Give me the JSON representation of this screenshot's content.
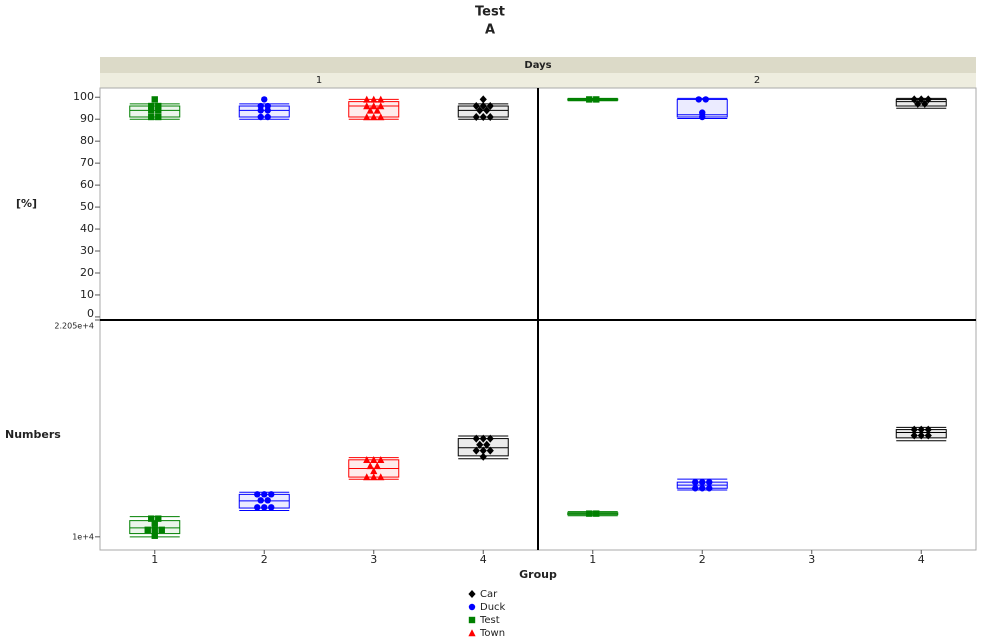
{
  "chart_data": {
    "type": "box",
    "title": "Test",
    "subtitle": "A",
    "facet_label": "Days",
    "facets": [
      "1",
      "2"
    ],
    "x_label": "Group",
    "categories": [
      "1",
      "2",
      "3",
      "4"
    ],
    "series": [
      {
        "name": "Test",
        "color": "#008000",
        "marker": "square"
      },
      {
        "name": "Duck",
        "color": "#0000ff",
        "marker": "circle"
      },
      {
        "name": "Town",
        "color": "#ff0000",
        "marker": "triangle"
      },
      {
        "name": "Car",
        "color": "#000000",
        "marker": "diamond"
      }
    ],
    "rows": [
      {
        "y_label": "[%]",
        "ylim": [
          -1.4,
          104.2
        ],
        "yticks": [
          0,
          10,
          20,
          30,
          40,
          50,
          60,
          70,
          80,
          90,
          100
        ],
        "facets": [
          [
            {
              "points": [
                99,
                96,
                96,
                94,
                94,
                91,
                91
              ],
              "box": [
                90,
                91,
                94,
                96,
                97
              ]
            },
            {
              "points": [
                99,
                96,
                96,
                94,
                94,
                91,
                91
              ],
              "box": [
                90,
                91,
                94,
                96,
                97
              ]
            },
            {
              "points": [
                99,
                99,
                99,
                96,
                96,
                96,
                94,
                94,
                91,
                91,
                91
              ],
              "box": [
                90,
                91,
                96,
                98,
                99
              ]
            },
            {
              "points": [
                99,
                96,
                96,
                96,
                94,
                94,
                91,
                91,
                91
              ],
              "box": [
                90,
                91,
                94,
                96,
                97
              ]
            }
          ],
          [
            {
              "points": [
                99,
                99
              ],
              "box": [
                98.4,
                98.7,
                99,
                99.2,
                99.5
              ]
            },
            {
              "points": [
                99,
                99,
                93,
                91
              ],
              "box": [
                90.3,
                91,
                92,
                99,
                99.5
              ]
            },
            null,
            {
              "points": [
                99,
                99,
                99,
                97,
                97
              ],
              "box": [
                95,
                96,
                98,
                99,
                99.5
              ]
            }
          ]
        ]
      },
      {
        "y_label": "Numbers",
        "ylim": [
          9268,
          22050
        ],
        "yticks": [
          {
            "value": 10000,
            "label": "1e+4"
          },
          {
            "value": 22050,
            "label": "2.205e+4"
          }
        ],
        "facets": [
          [
            {
              "points": [
                11010,
                11010,
                10730,
                10390,
                10390,
                10390,
                10060
              ],
              "box": [
                10000,
                10180,
                10500,
                10900,
                11120
              ]
            },
            {
              "points": [
                12360,
                12360,
                12360,
                12030,
                12030,
                11640,
                11640,
                11640
              ],
              "box": [
                11460,
                11600,
                12000,
                12360,
                12480
              ]
            },
            {
              "points": [
                14280,
                14280,
                14280,
                13940,
                13940,
                13660,
                13320,
                13320,
                13320
              ],
              "box": [
                13200,
                13320,
                13800,
                14280,
                14400
              ]
            },
            {
              "points": [
                15460,
                15460,
                15460,
                15120,
                15120,
                14790,
                14790,
                14790,
                14450
              ],
              "box": [
                14340,
                14500,
                14950,
                15460,
                15600
              ]
            }
          ],
          [
            {
              "points": [
                11290,
                11290
              ],
              "box": [
                11170,
                11230,
                11290,
                11340,
                11400
              ]
            },
            {
              "points": [
                13040,
                13040,
                13040,
                12700,
                12700,
                12700
              ],
              "box": [
                12600,
                12700,
                12870,
                13040,
                13210
              ]
            },
            null,
            {
              "points": [
                15960,
                15960,
                15960,
                15630,
                15630,
                15630
              ],
              "box": [
                15340,
                15500,
                15800,
                15960,
                16080
              ]
            }
          ]
        ]
      }
    ]
  }
}
